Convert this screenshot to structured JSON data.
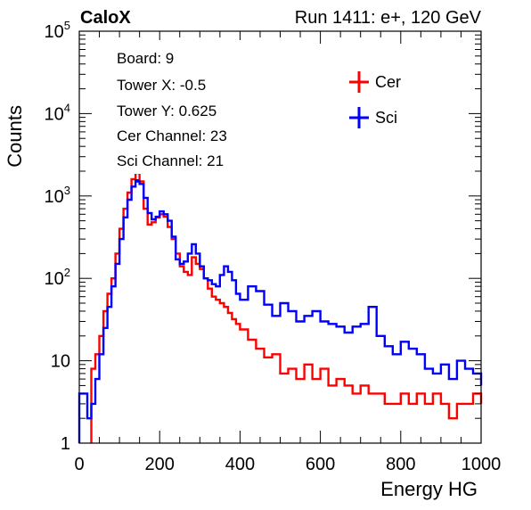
{
  "chart_data": {
    "type": "line",
    "title_left": "CaloX",
    "title_right": "Run 1411: e+, 120 GeV",
    "xlabel": "Energy HG",
    "ylabel": "Counts",
    "xlim": [
      0,
      1000
    ],
    "ylim": [
      1,
      100000
    ],
    "yscale": "log",
    "grid": false,
    "x_ticks": [
      "0",
      "200",
      "400",
      "600",
      "800",
      "1000"
    ],
    "y_ticks": [
      {
        "base": "1",
        "exp": ""
      },
      {
        "base": "10",
        "exp": ""
      },
      {
        "base": "10",
        "exp": "2"
      },
      {
        "base": "10",
        "exp": "3"
      },
      {
        "base": "10",
        "exp": "4"
      },
      {
        "base": "10",
        "exp": "5"
      }
    ],
    "info_box": [
      "Board: 9",
      "Tower X: -0.5",
      "Tower Y: 0.625",
      "Cer Channel: 23",
      "Sci Channel: 21"
    ],
    "legend_position": "top-right",
    "series": [
      {
        "name": "Cer",
        "color": "#ff0000",
        "x": [
          0,
          30,
          40,
          50,
          60,
          70,
          80,
          90,
          100,
          110,
          120,
          130,
          140,
          145,
          150,
          160,
          170,
          180,
          190,
          200,
          210,
          220,
          230,
          240,
          250,
          260,
          270,
          280,
          290,
          300,
          310,
          320,
          330,
          340,
          350,
          360,
          370,
          380,
          390,
          400,
          420,
          440,
          460,
          480,
          500,
          520,
          540,
          560,
          580,
          600,
          620,
          640,
          660,
          680,
          700,
          720,
          740,
          760,
          780,
          800,
          820,
          840,
          860,
          880,
          900,
          920,
          940,
          960,
          980,
          1000
        ],
        "y": [
          null,
          8,
          12,
          20,
          40,
          65,
          100,
          200,
          400,
          700,
          1100,
          1600,
          1900,
          1950,
          1500,
          700,
          450,
          480,
          550,
          600,
          560,
          420,
          300,
          200,
          140,
          120,
          110,
          180,
          150,
          130,
          100,
          75,
          60,
          55,
          50,
          45,
          38,
          32,
          28,
          24,
          18,
          14,
          11,
          12,
          7,
          8,
          6,
          9,
          6,
          8,
          5,
          6,
          5,
          4,
          5,
          4,
          4,
          3,
          3,
          4,
          3,
          4,
          3,
          4,
          3,
          2,
          3,
          3,
          4,
          3
        ]
      },
      {
        "name": "Sci",
        "color": "#0000ff",
        "x": [
          0,
          20,
          30,
          40,
          50,
          60,
          70,
          80,
          90,
          100,
          110,
          120,
          130,
          140,
          145,
          150,
          160,
          170,
          180,
          190,
          200,
          210,
          220,
          230,
          240,
          250,
          260,
          270,
          280,
          290,
          300,
          310,
          320,
          330,
          340,
          350,
          360,
          370,
          380,
          390,
          400,
          420,
          440,
          460,
          480,
          500,
          520,
          540,
          560,
          580,
          600,
          620,
          640,
          660,
          680,
          700,
          720,
          740,
          760,
          780,
          800,
          820,
          840,
          860,
          880,
          900,
          920,
          940,
          960,
          980,
          1000
        ],
        "y": [
          4,
          2,
          3,
          6,
          12,
          25,
          45,
          80,
          150,
          300,
          550,
          900,
          1300,
          1550,
          1500,
          1400,
          950,
          620,
          520,
          560,
          650,
          600,
          500,
          320,
          170,
          150,
          160,
          200,
          260,
          200,
          140,
          100,
          95,
          85,
          80,
          110,
          140,
          120,
          95,
          65,
          55,
          80,
          70,
          48,
          35,
          50,
          40,
          30,
          35,
          40,
          30,
          28,
          26,
          22,
          26,
          28,
          45,
          20,
          15,
          12,
          17,
          14,
          12,
          8,
          7,
          9,
          6,
          10,
          8,
          7,
          5
        ]
      }
    ]
  }
}
